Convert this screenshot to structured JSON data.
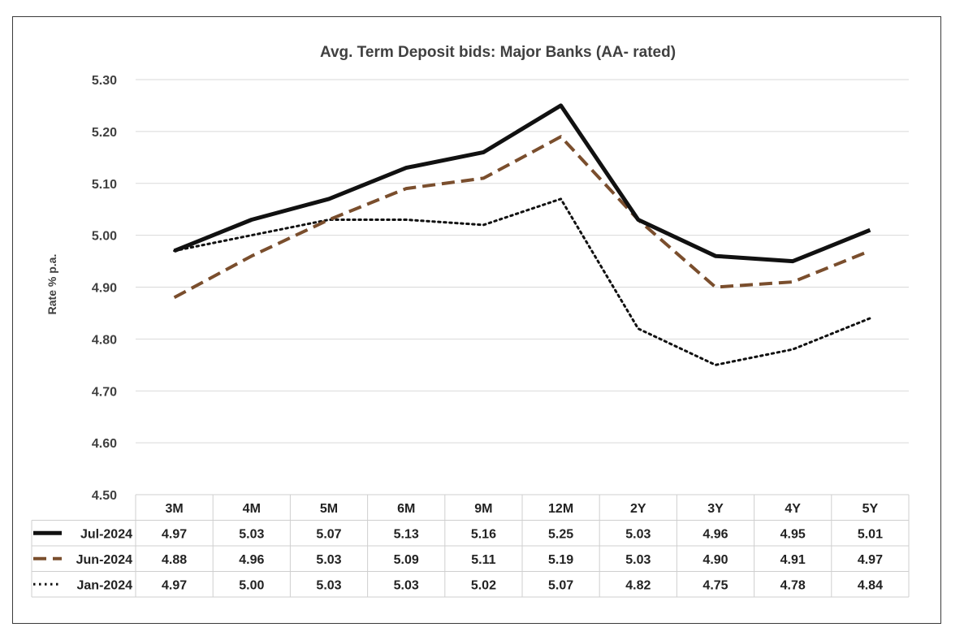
{
  "chart_data": {
    "type": "line",
    "title": "Avg. Term Deposit bids: Major Banks (AA- rated)",
    "ylabel": "Rate % p.a.",
    "xlabel": "",
    "ylim": [
      4.5,
      5.3
    ],
    "yticks": [
      4.5,
      4.6,
      4.7,
      4.8,
      4.9,
      5.0,
      5.1,
      5.2,
      5.3
    ],
    "ytick_labels": [
      "4.50",
      "4.60",
      "4.70",
      "4.80",
      "4.90",
      "5.00",
      "5.10",
      "5.20",
      "5.30"
    ],
    "grid": "horizontal",
    "legend_position": "bottom (data table)",
    "categories": [
      "3M",
      "4M",
      "5M",
      "6M",
      "9M",
      "12M",
      "2Y",
      "3Y",
      "4Y",
      "5Y"
    ],
    "series": [
      {
        "name": "Jul-2024",
        "style": "solid",
        "color": "#111111",
        "values": [
          4.97,
          5.03,
          5.07,
          5.13,
          5.16,
          5.25,
          5.03,
          4.96,
          4.95,
          5.01
        ],
        "labels": [
          "4.97",
          "5.03",
          "5.07",
          "5.13",
          "5.16",
          "5.25",
          "5.03",
          "4.96",
          "4.95",
          "5.01"
        ]
      },
      {
        "name": "Jun-2024",
        "style": "dashed",
        "color": "#7a4e2d",
        "values": [
          4.88,
          4.96,
          5.03,
          5.09,
          5.11,
          5.19,
          5.03,
          4.9,
          4.91,
          4.97
        ],
        "labels": [
          "4.88",
          "4.96",
          "5.03",
          "5.09",
          "5.11",
          "5.19",
          "5.03",
          "4.90",
          "4.91",
          "4.97"
        ]
      },
      {
        "name": "Jan-2024",
        "style": "dotted",
        "color": "#111111",
        "values": [
          4.97,
          5.0,
          5.03,
          5.03,
          5.02,
          5.07,
          4.82,
          4.75,
          4.78,
          4.84
        ],
        "labels": [
          "4.97",
          "5.00",
          "5.03",
          "5.03",
          "5.02",
          "5.07",
          "4.82",
          "4.75",
          "4.78",
          "4.84"
        ]
      }
    ]
  }
}
